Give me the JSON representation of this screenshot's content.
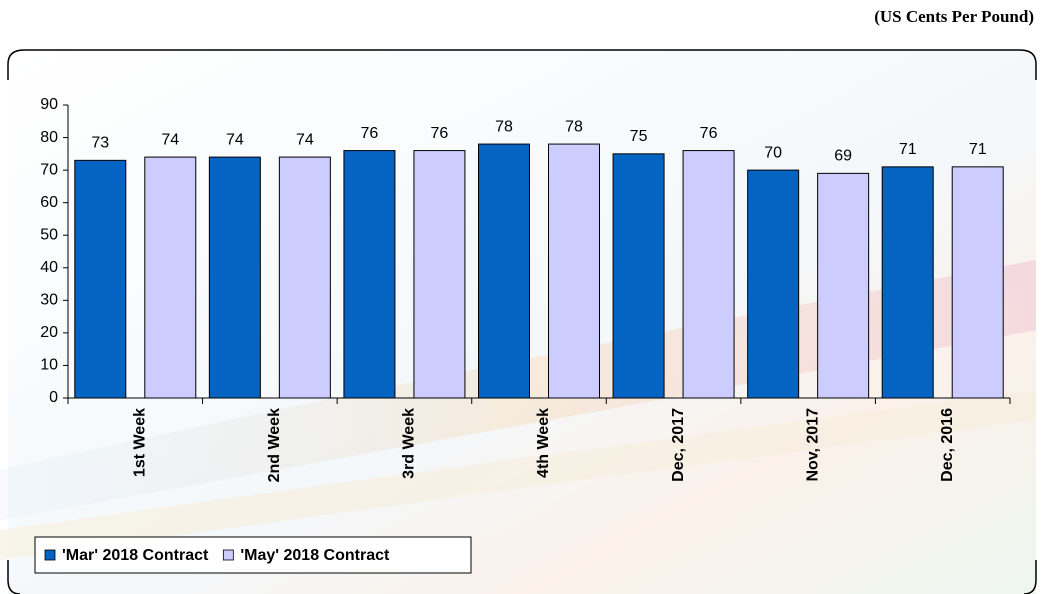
{
  "chart_data": {
    "type": "bar",
    "y_label": "(US Cents Per Pound)",
    "categories": [
      "1st Week",
      "2nd Week",
      "3rd Week",
      "4th Week",
      "Dec, 2017",
      "Nov, 2017",
      "Dec, 2016"
    ],
    "series": [
      {
        "name": "'Mar' 2018 Contract",
        "color": "#0563c1",
        "values": [
          73,
          74,
          76,
          78,
          75,
          70,
          71
        ]
      },
      {
        "name": "'May' 2018 Contract",
        "color": "#ccccff",
        "values": [
          74,
          74,
          76,
          78,
          76,
          69,
          71
        ]
      }
    ],
    "ylim": [
      0,
      90
    ],
    "yticks": [
      0,
      10,
      20,
      30,
      40,
      50,
      60,
      70,
      80,
      90
    ],
    "grid": false,
    "legend": "bottom-left"
  }
}
